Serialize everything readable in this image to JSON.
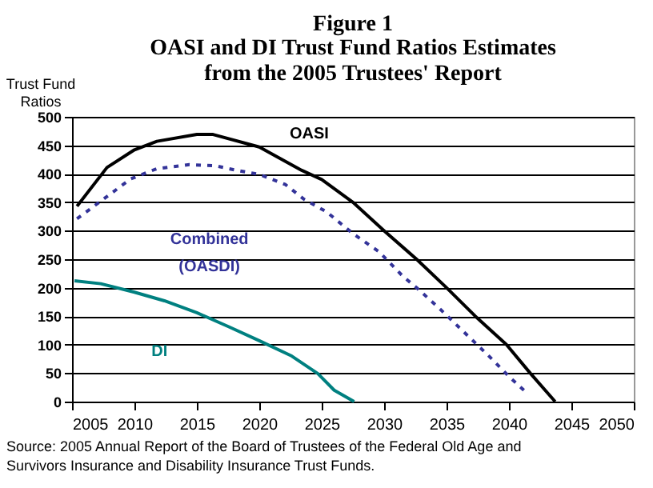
{
  "chart_data": {
    "type": "line",
    "title": "Figure 1",
    "subtitle": "OASI and DI Trust Fund Ratios Estimates from the 2005 Trustees' Report",
    "ylabel": "Trust Fund Ratios",
    "annotations": [
      "Source: 2005 Annual Report of the Board of Trustees of the Federal Old Age and Survivors Insurance and Disability Insurance Trust Funds."
    ],
    "series": [
      {
        "name": "OASI",
        "color": "#000000",
        "line_style": "solid",
        "x": [
          2005.4,
          2007.8,
          2010,
          2011.8,
          2015,
          2016.3,
          2020,
          2023.4,
          2025,
          2027.5,
          2030,
          2032.6,
          2035,
          2037.3,
          2039.8,
          2041.7,
          2043.7
        ],
        "values": [
          343,
          411,
          442,
          457,
          469,
          469,
          447,
          406,
          390,
          350,
          300,
          250,
          200,
          150,
          100,
          50,
          0
        ]
      },
      {
        "name": "Combined (OASDI)",
        "color": "#333399",
        "line_style": "dashed",
        "x": [
          2005.4,
          2007.8,
          2009.7,
          2011.8,
          2014.4,
          2016.5,
          2018.2,
          2020,
          2022.1,
          2023.6,
          2025.4,
          2027.5,
          2029.6,
          2031.5,
          2032.6,
          2034.6,
          2036.4,
          2038.3,
          2040.1,
          2041.2
        ],
        "values": [
          321,
          360,
          391,
          409,
          416,
          414,
          406,
          399,
          381,
          355,
          333,
          295,
          263,
          220,
          200,
          160,
          122,
          82,
          42,
          20
        ]
      },
      {
        "name": "DI",
        "color": "#008080",
        "line_style": "solid",
        "x": [
          2005.2,
          2007.3,
          2010,
          2012.4,
          2015,
          2017.6,
          2020,
          2022.6,
          2024.7,
          2026,
          2027.6
        ],
        "values": [
          212,
          207,
          192,
          177,
          156,
          131,
          107,
          80,
          49,
          20,
          0
        ]
      }
    ],
    "xlim": [
      2005,
      2050
    ],
    "xticks": [
      2005,
      2010,
      2015,
      2020,
      2025,
      2030,
      2035,
      2040,
      2045,
      2050
    ],
    "ylim": [
      0,
      500
    ],
    "yticks": [
      0,
      50,
      100,
      150,
      200,
      250,
      300,
      350,
      400,
      450,
      500
    ],
    "grid": "y",
    "legend": false,
    "marker": "none"
  }
}
